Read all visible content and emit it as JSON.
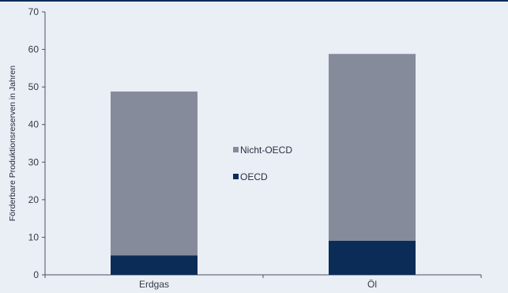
{
  "chart_data": {
    "type": "bar",
    "stacked": true,
    "categories": [
      "Erdgas",
      "Öl"
    ],
    "series": [
      {
        "name": "OECD",
        "values": [
          5.2,
          9.1
        ],
        "color": "#0b2c57"
      },
      {
        "name": "Nicht-OECD",
        "values": [
          43.6,
          49.7
        ],
        "color": "#868b9c"
      }
    ],
    "ylabel": "Förderbare Produktionsreserven in Jahren",
    "xlabel": "",
    "ylim": [
      0,
      70
    ],
    "yticks": [
      0,
      10,
      20,
      30,
      40,
      50,
      60,
      70
    ],
    "grid": false,
    "legend": {
      "placement": "center",
      "order": [
        "Nicht-OECD",
        "OECD"
      ]
    }
  }
}
